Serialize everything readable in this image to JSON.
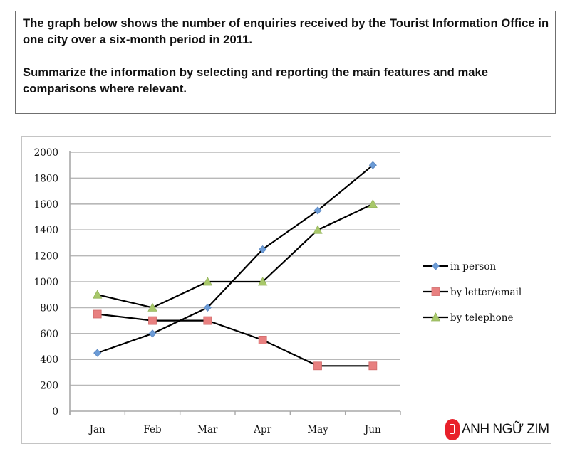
{
  "prompt": {
    "paragraph1": "The graph below shows the number of enquiries received by the Tourist Information Office in one city over a six-month period in 2011.",
    "paragraph2": "Summarize the information by selecting and reporting the main features and make comparisons where relevant."
  },
  "logo": {
    "text": "ANH NGỮ ZIM",
    "color": "#e8202a"
  },
  "chart_data": {
    "type": "line",
    "title": "",
    "xlabel": "",
    "ylabel": "",
    "categories": [
      "Jan",
      "Feb",
      "Mar",
      "Apr",
      "May",
      "Jun"
    ],
    "yticks": [
      0,
      200,
      400,
      600,
      800,
      1000,
      1200,
      1400,
      1600,
      1800,
      2000
    ],
    "ylim": [
      0,
      2000
    ],
    "grid": true,
    "legend_position": "right",
    "series": [
      {
        "name": "in person",
        "marker": "diamond",
        "marker_color": "#6b9bd6",
        "line_color": "#000000",
        "values": [
          450,
          600,
          800,
          1250,
          1550,
          1900
        ]
      },
      {
        "name": "by letter/email",
        "marker": "square",
        "marker_color": "#e88080",
        "line_color": "#000000",
        "values": [
          750,
          700,
          700,
          550,
          350,
          350
        ]
      },
      {
        "name": "by telephone",
        "marker": "triangle",
        "marker_color": "#a8c86a",
        "line_color": "#000000",
        "values": [
          900,
          800,
          1000,
          1000,
          1400,
          1600
        ]
      }
    ]
  }
}
